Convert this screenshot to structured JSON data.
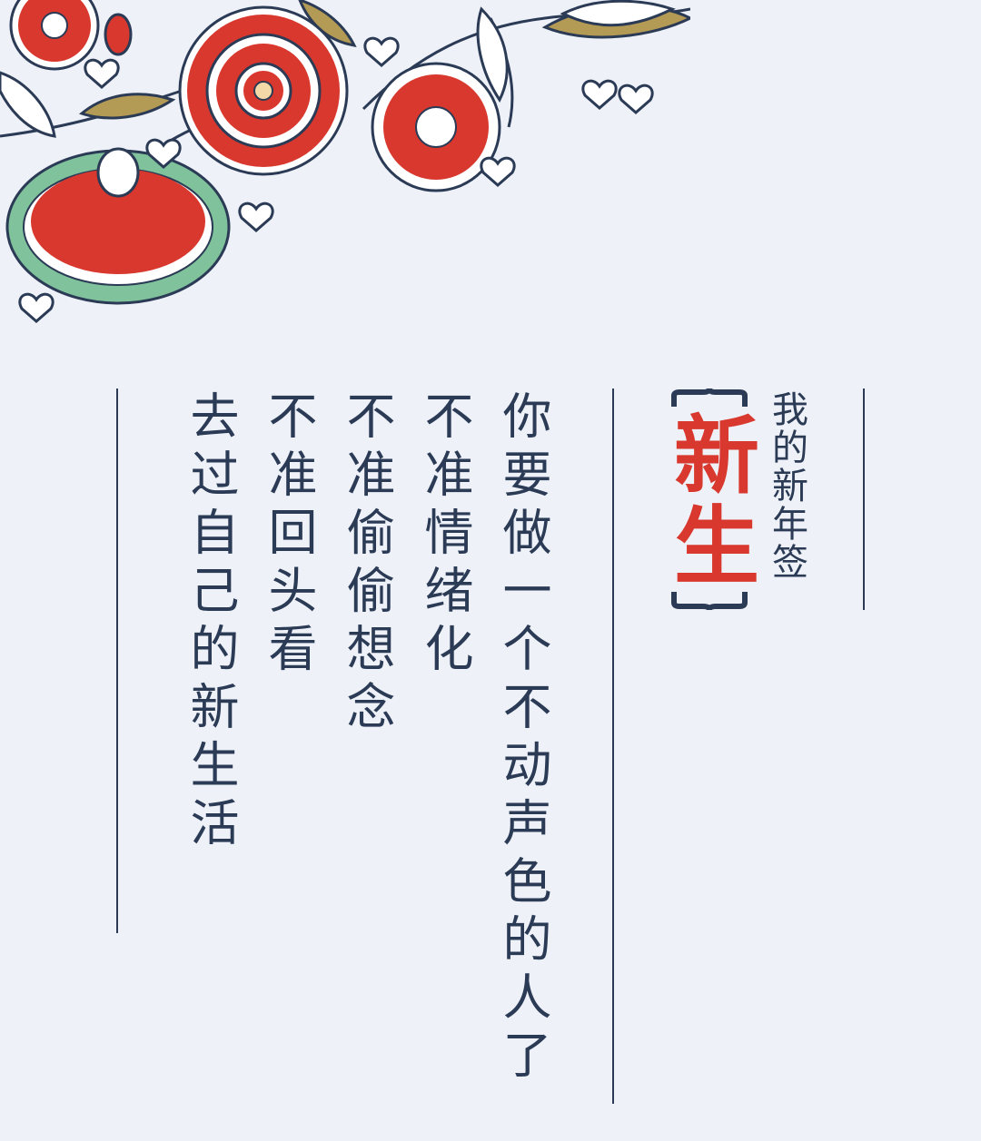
{
  "card": {
    "subtitle": "我的新年签",
    "title": "新生",
    "lines": [
      "你要做一个不动声色的人了",
      "不准情绪化",
      "不准偷偷想念",
      "不准回头看",
      "去过自己的新生活"
    ]
  },
  "colors": {
    "background": "#eef2f8",
    "ink": "#2b3a55",
    "accent_red": "#d8382e",
    "leaf_green": "#7fc29b",
    "gold": "#b39a55"
  }
}
